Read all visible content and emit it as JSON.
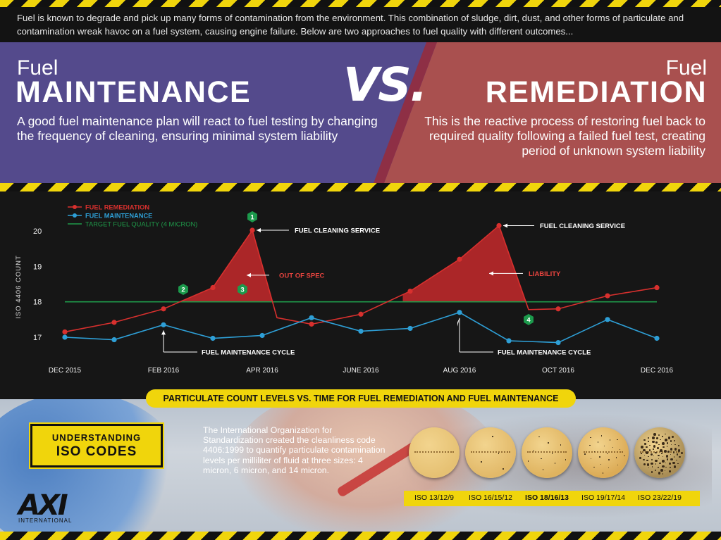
{
  "intro": {
    "text": "Fuel is known to degrade and pick up many forms of contamination from the environment.  This combination of sludge, dirt, dust, and other forms of particulate and contamination wreak havoc on a fuel system, causing engine failure.  Below are two approaches to fuel quality with different outcomes..."
  },
  "banner": {
    "left": {
      "small": "Fuel",
      "big": "MAINTENANCE",
      "desc": "A good fuel maintenance plan will react to fuel testing by changing the frequency of cleaning, ensuring minimal system liability"
    },
    "vs": "VS.",
    "right": {
      "small": "Fuel",
      "big": "REMEDIATION",
      "desc": "This is the reactive process of restoring fuel back to required quality following a failed fuel test, creating period of unknown system liability"
    },
    "colors": {
      "left": "#544a8c",
      "right": "#a9504f"
    }
  },
  "chart_data": {
    "type": "line",
    "title": "PARTICULATE COUNT LEVELS VS. TIME FOR FUEL REMEDIATION AND FUEL MAINTENANCE",
    "ylabel": "ISO 4406 COUNT",
    "xlabel": "",
    "x_ticks": [
      "DEC 2015",
      "FEB 2016",
      "APR 2016",
      "JUNE 2016",
      "AUG 2016",
      "OCT 2016",
      "DEC 2016"
    ],
    "y_ticks": [
      17,
      18,
      19,
      20
    ],
    "ylim": [
      16.8,
      20.1
    ],
    "xlim": [
      0,
      12
    ],
    "grid": false,
    "legend_position": "top-left",
    "series": [
      {
        "name": "FUEL REMEDIATION",
        "color": "#d8302e",
        "points": [
          [
            0,
            17.15
          ],
          [
            1,
            17.42
          ],
          [
            2,
            17.8
          ],
          [
            3,
            18.4
          ],
          [
            3.8,
            20.02
          ],
          [
            4.3,
            17.55
          ],
          [
            5,
            17.37
          ],
          [
            6,
            17.65
          ],
          [
            7,
            18.3
          ],
          [
            8,
            19.2
          ],
          [
            8.8,
            20.15
          ],
          [
            9.4,
            17.78
          ],
          [
            10,
            17.8
          ],
          [
            11,
            18.17
          ],
          [
            12,
            18.4
          ]
        ]
      },
      {
        "name": "FUEL MAINTENANCE",
        "color": "#2e9fd6",
        "points": [
          [
            0,
            17.0
          ],
          [
            1,
            16.93
          ],
          [
            2,
            17.35
          ],
          [
            3,
            16.97
          ],
          [
            4,
            17.05
          ],
          [
            5,
            17.55
          ],
          [
            6,
            17.17
          ],
          [
            7,
            17.25
          ],
          [
            8,
            17.7
          ],
          [
            9,
            16.9
          ],
          [
            10,
            16.85
          ],
          [
            11,
            17.5
          ],
          [
            12,
            16.97
          ]
        ]
      },
      {
        "name": "TARGET FUEL QUALITY  (4 MICRON)",
        "color": "#1f9a4a",
        "points": [
          [
            0,
            18.0
          ],
          [
            12,
            18.0
          ]
        ]
      }
    ],
    "annotations": [
      {
        "text": "FUEL CLEANING SERVICE",
        "x": 3.8,
        "y": 20.02
      },
      {
        "text": "OUT OF SPEC",
        "x": 3.8,
        "y": 18.75
      },
      {
        "text": "FUEL MAINTENANCE CYCLE",
        "x": 2.0,
        "y": 17.35
      },
      {
        "text": "FUEL CLEANING SERVICE",
        "x": 8.8,
        "y": 20.15
      },
      {
        "text": "LIABILITY",
        "x": 8.6,
        "y": 18.8
      },
      {
        "text": "FUEL MAINTENANCE CYCLE",
        "x": 8.0,
        "y": 17.7
      }
    ],
    "markers": [
      {
        "label": "1",
        "x": 3.8,
        "y": 20.4
      },
      {
        "label": "2",
        "x": 2.4,
        "y": 18.35
      },
      {
        "label": "3",
        "x": 3.6,
        "y": 18.35
      },
      {
        "label": "4",
        "x": 9.4,
        "y": 17.5
      }
    ]
  },
  "iso": {
    "box_line1": "UNDERSTANDING",
    "box_line2": "ISO CODES",
    "text": "The International Organization for Standardization created the cleanliness code 4406:1999 to quantify particulate contamination levels per milliliter of fluid at three sizes: 4 micron, 6 micron, and 14 micron.",
    "samples": [
      {
        "label": "ISO 13/12/9",
        "bold": false,
        "color": "#e6c173"
      },
      {
        "label": "ISO 16/15/12",
        "bold": false,
        "color": "#e2b969"
      },
      {
        "label": "ISO 18/16/13",
        "bold": true,
        "color": "#dfb35f"
      },
      {
        "label": "ISO 19/17/14",
        "bold": false,
        "color": "#dcab56"
      },
      {
        "label": "ISO 23/22/19",
        "bold": false,
        "color": "#a98d55"
      }
    ]
  },
  "logo": {
    "mark": "AXI",
    "sub": "INTERNATIONAL"
  }
}
